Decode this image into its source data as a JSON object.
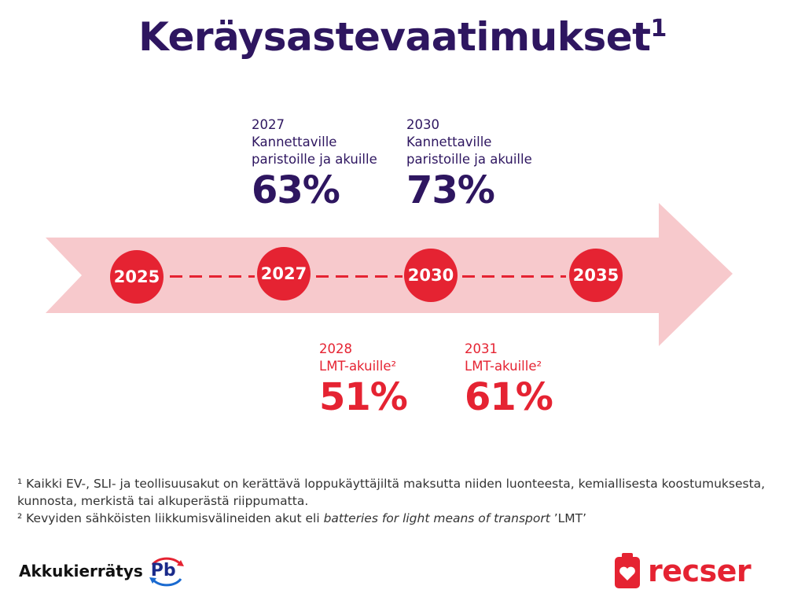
{
  "title": {
    "text": "Keräysastevaatimukset",
    "sup": "1"
  },
  "timeline": {
    "years": [
      "2025",
      "2027",
      "2030",
      "2035"
    ]
  },
  "milestones_upper": [
    {
      "year": "2027",
      "line1": "Kannettaville",
      "line2": "paristoille ja akuille",
      "percent": "63%"
    },
    {
      "year": "2030",
      "line1": "Kannettaville",
      "line2": "paristoille ja akuille",
      "percent": "73%"
    }
  ],
  "milestones_lower": [
    {
      "year": "2028",
      "label": "LMT-akuille²",
      "percent": "51%"
    },
    {
      "year": "2031",
      "label": "LMT-akuille²",
      "percent": "61%"
    }
  ],
  "footnotes": {
    "note1": "¹ Kaikki EV-, SLI- ja teollisuusakut on kerättävä loppukäyttäjiltä maksutta niiden luonteesta, kemiallisesta koostumuksesta, kunnosta, merkistä tai alkuperästä riippumatta.",
    "note2_prefix": "² Kevyiden sähköisten liikkumisvälineiden akut eli ",
    "note2_italic": "batteries for light means of transport",
    "note2_suffix": " ’LMT’"
  },
  "logos": {
    "left_text": "Akkukierrätys",
    "left_badge": "Pb",
    "right_text": "recser"
  },
  "colors": {
    "title": "#2e1660",
    "accent_red": "#e52332",
    "arrow_fill": "#f7c9cc"
  }
}
